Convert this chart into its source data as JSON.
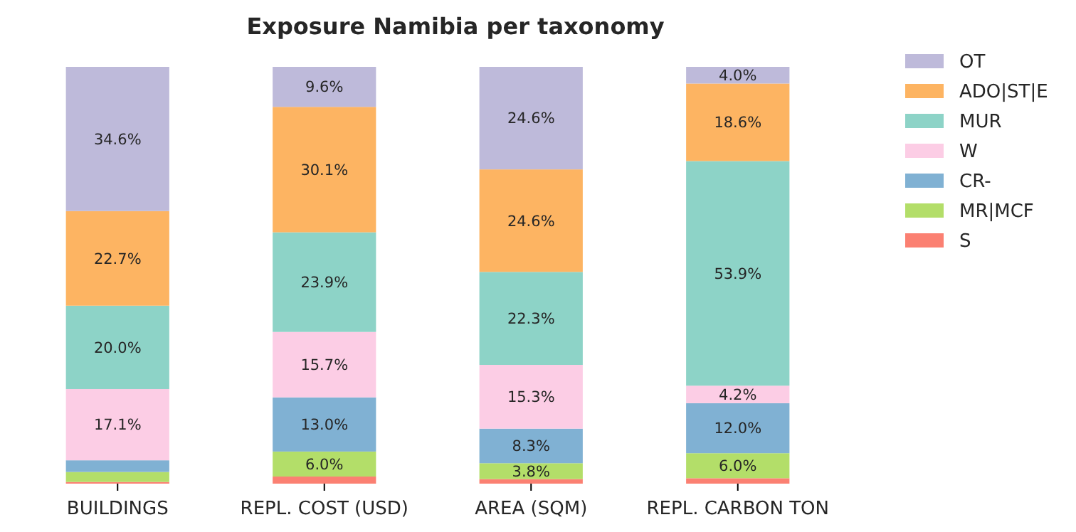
{
  "chart_data": {
    "type": "bar",
    "title": "Exposure Namibia per taxonomy",
    "stacked": true,
    "categories": [
      "BUILDINGS",
      "REPL. COST (USD)",
      "AREA (SQM)",
      "REPL. CARBON TON"
    ],
    "ylim": [
      0,
      100
    ],
    "tick_labels": "x",
    "grid": false,
    "legend": "right",
    "series": [
      {
        "name": "S",
        "color": "#fb8072",
        "values": [
          0.4,
          1.7,
          1.1,
          1.3
        ],
        "value_labels": [
          null,
          null,
          null,
          null
        ]
      },
      {
        "name": "MR|MCF",
        "color": "#b3de69",
        "values": [
          2.4,
          6.0,
          3.8,
          6.0
        ],
        "value_labels": [
          null,
          "6.0%",
          "3.8%",
          "6.0%"
        ]
      },
      {
        "name": "CR-",
        "color": "#80b1d3",
        "values": [
          2.8,
          13.0,
          8.3,
          12.0
        ],
        "value_labels": [
          null,
          "13.0%",
          "8.3%",
          "12.0%"
        ]
      },
      {
        "name": "W",
        "color": "#fccde5",
        "values": [
          17.1,
          15.7,
          15.3,
          4.2
        ],
        "value_labels": [
          "17.1%",
          "15.7%",
          "15.3%",
          "4.2%"
        ]
      },
      {
        "name": "MUR",
        "color": "#8dd3c7",
        "values": [
          20.0,
          23.9,
          22.3,
          53.9
        ],
        "value_labels": [
          "20.0%",
          "23.9%",
          "22.3%",
          "53.9%"
        ]
      },
      {
        "name": "ADO|ST|E",
        "color": "#fdb462",
        "values": [
          22.7,
          30.1,
          24.6,
          18.6
        ],
        "value_labels": [
          "22.7%",
          "30.1%",
          "24.6%",
          "18.6%"
        ]
      },
      {
        "name": "OT",
        "color": "#bebada",
        "values": [
          34.6,
          9.6,
          24.6,
          4.0
        ],
        "value_labels": [
          "34.6%",
          "9.6%",
          "24.6%",
          "4.0%"
        ]
      }
    ]
  }
}
